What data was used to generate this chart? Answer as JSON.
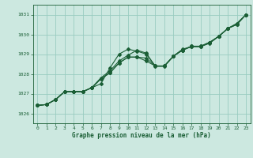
{
  "xlabel": "Graphe pression niveau de la mer (hPa)",
  "xlim": [
    -0.5,
    23.5
  ],
  "ylim": [
    1025.5,
    1031.5
  ],
  "yticks": [
    1026,
    1027,
    1028,
    1029,
    1030,
    1031
  ],
  "xticks": [
    0,
    1,
    2,
    3,
    4,
    5,
    6,
    7,
    8,
    9,
    10,
    11,
    12,
    13,
    14,
    15,
    16,
    17,
    18,
    19,
    20,
    21,
    22,
    23
  ],
  "background_color": "#cce8e0",
  "grid_color": "#99ccc0",
  "line_color": "#1a5e35",
  "line1": [
    1026.4,
    1026.45,
    1026.7,
    1027.1,
    1027.1,
    1027.1,
    1027.3,
    1027.5,
    1028.3,
    1029.0,
    1029.25,
    1029.15,
    1029.0,
    1028.4,
    1028.4,
    1028.9,
    1029.2,
    1029.4,
    1029.4,
    1029.6,
    1029.9,
    1030.3,
    1030.55,
    1031.0
  ],
  "line2": [
    1026.4,
    1026.45,
    1026.7,
    1027.1,
    1027.1,
    1027.1,
    1027.3,
    1027.75,
    1028.05,
    1028.55,
    1028.85,
    1028.85,
    1028.8,
    1028.4,
    1028.4,
    1028.9,
    1029.2,
    1029.4,
    1029.4,
    1029.6,
    1029.9,
    1030.3,
    1030.55,
    1031.0
  ],
  "line3": [
    1026.4,
    1026.45,
    1026.7,
    1027.1,
    1027.1,
    1027.1,
    1027.3,
    1027.75,
    1028.05,
    1028.55,
    1028.85,
    1028.85,
    1028.65,
    1028.4,
    1028.4,
    1028.9,
    1029.2,
    1029.38,
    1029.38,
    1029.55,
    1029.9,
    1030.3,
    1030.5,
    1031.0
  ],
  "line4": [
    1026.4,
    1026.45,
    1026.7,
    1027.1,
    1027.1,
    1027.1,
    1027.3,
    1027.8,
    1028.15,
    1028.65,
    1028.95,
    1029.2,
    1029.05,
    1028.38,
    1028.38,
    1028.9,
    1029.25,
    1029.38,
    1029.38,
    1029.58,
    1029.9,
    1030.3,
    1030.5,
    1031.0
  ]
}
